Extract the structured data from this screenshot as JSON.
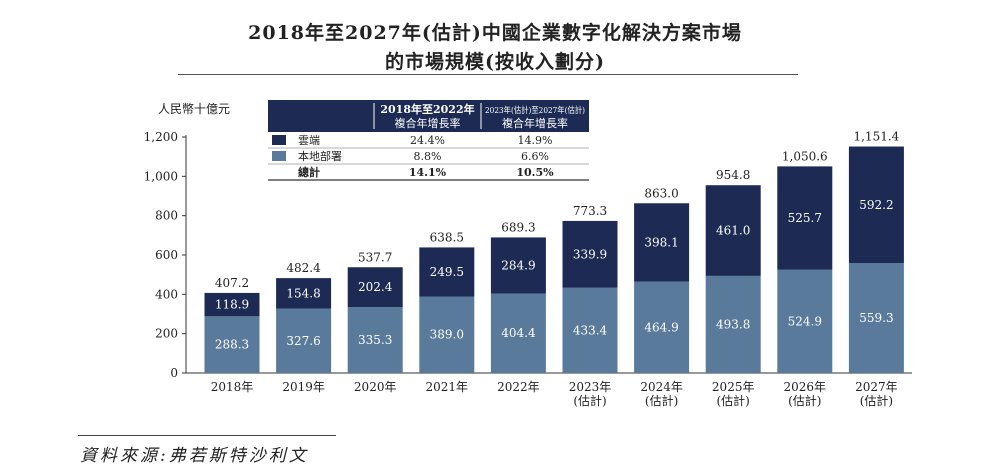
{
  "title_line1": "2018年至2027年(估計)中國企業數字化解決方案市場",
  "title_line2": "的市場規模(按收入劃分)",
  "source": "資料來源:弗若斯特沙利文",
  "colors": {
    "cloud": "#1c2a54",
    "onprem": "#5a7a9c",
    "grid_text": "#222222"
  },
  "chart_data": {
    "type": "bar",
    "stacked": true,
    "ylabel": "人民幣十億元",
    "ylim": [
      0,
      1200
    ],
    "yticks": [
      "0",
      "200",
      "400",
      "600",
      "800",
      "1,000",
      "1,200"
    ],
    "categories": [
      [
        "2018年"
      ],
      [
        "2019年"
      ],
      [
        "2020年"
      ],
      [
        "2021年"
      ],
      [
        "2022年"
      ],
      [
        "2023年",
        "(估計)"
      ],
      [
        "2024年",
        "(估計)"
      ],
      [
        "2025年",
        "(估計)"
      ],
      [
        "2026年",
        "(估計)"
      ],
      [
        "2027年",
        "(估計)"
      ]
    ],
    "series": [
      {
        "name": "本地部署",
        "color": "#5a7a9c",
        "values": [
          288.3,
          327.6,
          335.3,
          389.0,
          404.4,
          433.4,
          464.9,
          493.8,
          524.9,
          559.3
        ],
        "labels": [
          "288.3",
          "327.6",
          "335.3",
          "389.0",
          "404.4",
          "433.4",
          "464.9",
          "493.8",
          "524.9",
          "559.3"
        ]
      },
      {
        "name": "雲端",
        "color": "#1c2a54",
        "values": [
          118.9,
          154.8,
          202.4,
          249.5,
          284.9,
          339.9,
          398.1,
          461.0,
          525.7,
          592.2
        ],
        "labels": [
          "118.9",
          "154.8",
          "202.4",
          "249.5",
          "284.9",
          "339.9",
          "398.1",
          "461.0",
          "525.7",
          "592.2"
        ]
      }
    ],
    "totals": [
      407.2,
      482.4,
      537.7,
      638.5,
      689.3,
      773.3,
      863.0,
      954.8,
      1050.6,
      1151.4
    ],
    "total_labels": [
      "407.2",
      "482.4",
      "537.7",
      "638.5",
      "689.3",
      "773.3",
      "863.0",
      "954.8",
      "1,050.6",
      "1,151.4"
    ]
  },
  "cagr_table": {
    "header_col1": [
      "2018年至2022年",
      "複合年增長率"
    ],
    "header_col2": [
      "2023年(估計)至2027年(估計)",
      "複合年增長率"
    ],
    "rows": [
      {
        "label": "雲端",
        "swatch": "#1c2a54",
        "c1": "24.4%",
        "c2": "14.9%"
      },
      {
        "label": "本地部署",
        "swatch": "#5a7a9c",
        "c1": "8.8%",
        "c2": "6.6%"
      },
      {
        "label": "總計",
        "swatch": "",
        "c1": "14.1%",
        "c2": "10.5%"
      }
    ]
  }
}
